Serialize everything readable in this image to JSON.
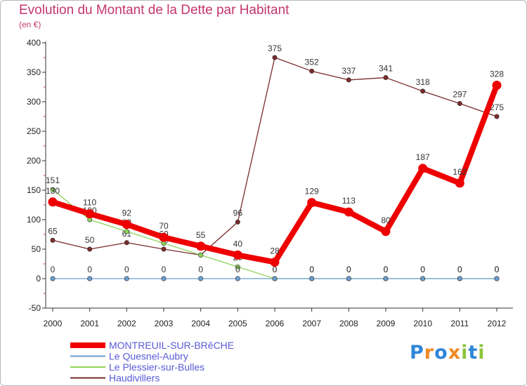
{
  "title": "Evolution du Montant de la Dette par Habitant",
  "subtitle": "(en €)",
  "logo": {
    "text": "Proxiti",
    "letters": [
      {
        "ch": "P",
        "color": "#2e86d8"
      },
      {
        "ch": "r",
        "color": "#f08a24"
      },
      {
        "ch": "o",
        "color": "#2e86d8"
      },
      {
        "ch": "x",
        "color": "#f08a24"
      },
      {
        "ch": "i",
        "color": "#8cc63e"
      },
      {
        "ch": "t",
        "color": "#2e86d8"
      },
      {
        "ch": "i",
        "color": "#8cc63e"
      }
    ]
  },
  "chart_data": {
    "type": "line",
    "title": "Evolution du Montant de la Dette par Habitant",
    "ylabel": "(en €)",
    "xlabel": "",
    "ylim": [
      -50,
      400
    ],
    "yticks": [
      -50,
      0,
      50,
      100,
      150,
      200,
      250,
      300,
      350,
      400
    ],
    "x": [
      "2000",
      "2001",
      "2002",
      "2003",
      "2004",
      "2005",
      "2006",
      "2007",
      "2008",
      "2009",
      "2010",
      "2011",
      "2012"
    ],
    "grid": false,
    "legend": "bottom-left",
    "series": [
      {
        "name": "Haudivillers",
        "color": "#7b2a2a",
        "values": [
          65,
          50,
          61,
          50,
          40,
          96,
          375,
          352,
          337,
          341,
          318,
          297,
          275
        ],
        "labels": [
          "65",
          "50",
          "61",
          "50",
          "40",
          "96",
          "375",
          "352",
          "337",
          "341",
          "318",
          "297",
          "275"
        ]
      },
      {
        "name": "Le Plessier-sur-Bulles",
        "color": "#8fd35a",
        "values": [
          151,
          100,
          80,
          60,
          40,
          20,
          0,
          0,
          0,
          0,
          0,
          0,
          0
        ],
        "labels": [
          "151",
          "100",
          "80",
          "60",
          "40",
          "20",
          "0",
          "0",
          "0",
          "0",
          "0",
          "0",
          "0"
        ]
      },
      {
        "name": "Le Quesnel-Aubry",
        "color": "#6a9fd0",
        "values": [
          0,
          0,
          0,
          0,
          0,
          0,
          0,
          0,
          0,
          0,
          0,
          0,
          0
        ],
        "labels": [
          "0",
          "0",
          "0",
          "0",
          "0",
          "0",
          "0",
          "0",
          "0",
          "0",
          "0",
          "0",
          "0"
        ]
      },
      {
        "name": "MONTREUIL-SUR-BRêCHE",
        "color": "#ee0000",
        "values": [
          130,
          110,
          92,
          70,
          55,
          40,
          28,
          129,
          113,
          80,
          187,
          162,
          328
        ],
        "labels": [
          "130",
          "110",
          "92",
          "70",
          "55",
          "40",
          "28",
          "129",
          "113",
          "80",
          "187",
          "162",
          "328"
        ]
      }
    ],
    "legend_entries": [
      "MONTREUIL-SUR-BRêCHE",
      "Le Quesnel-Aubry",
      "Le Plessier-sur-Bulles",
      "Haudivillers"
    ]
  }
}
